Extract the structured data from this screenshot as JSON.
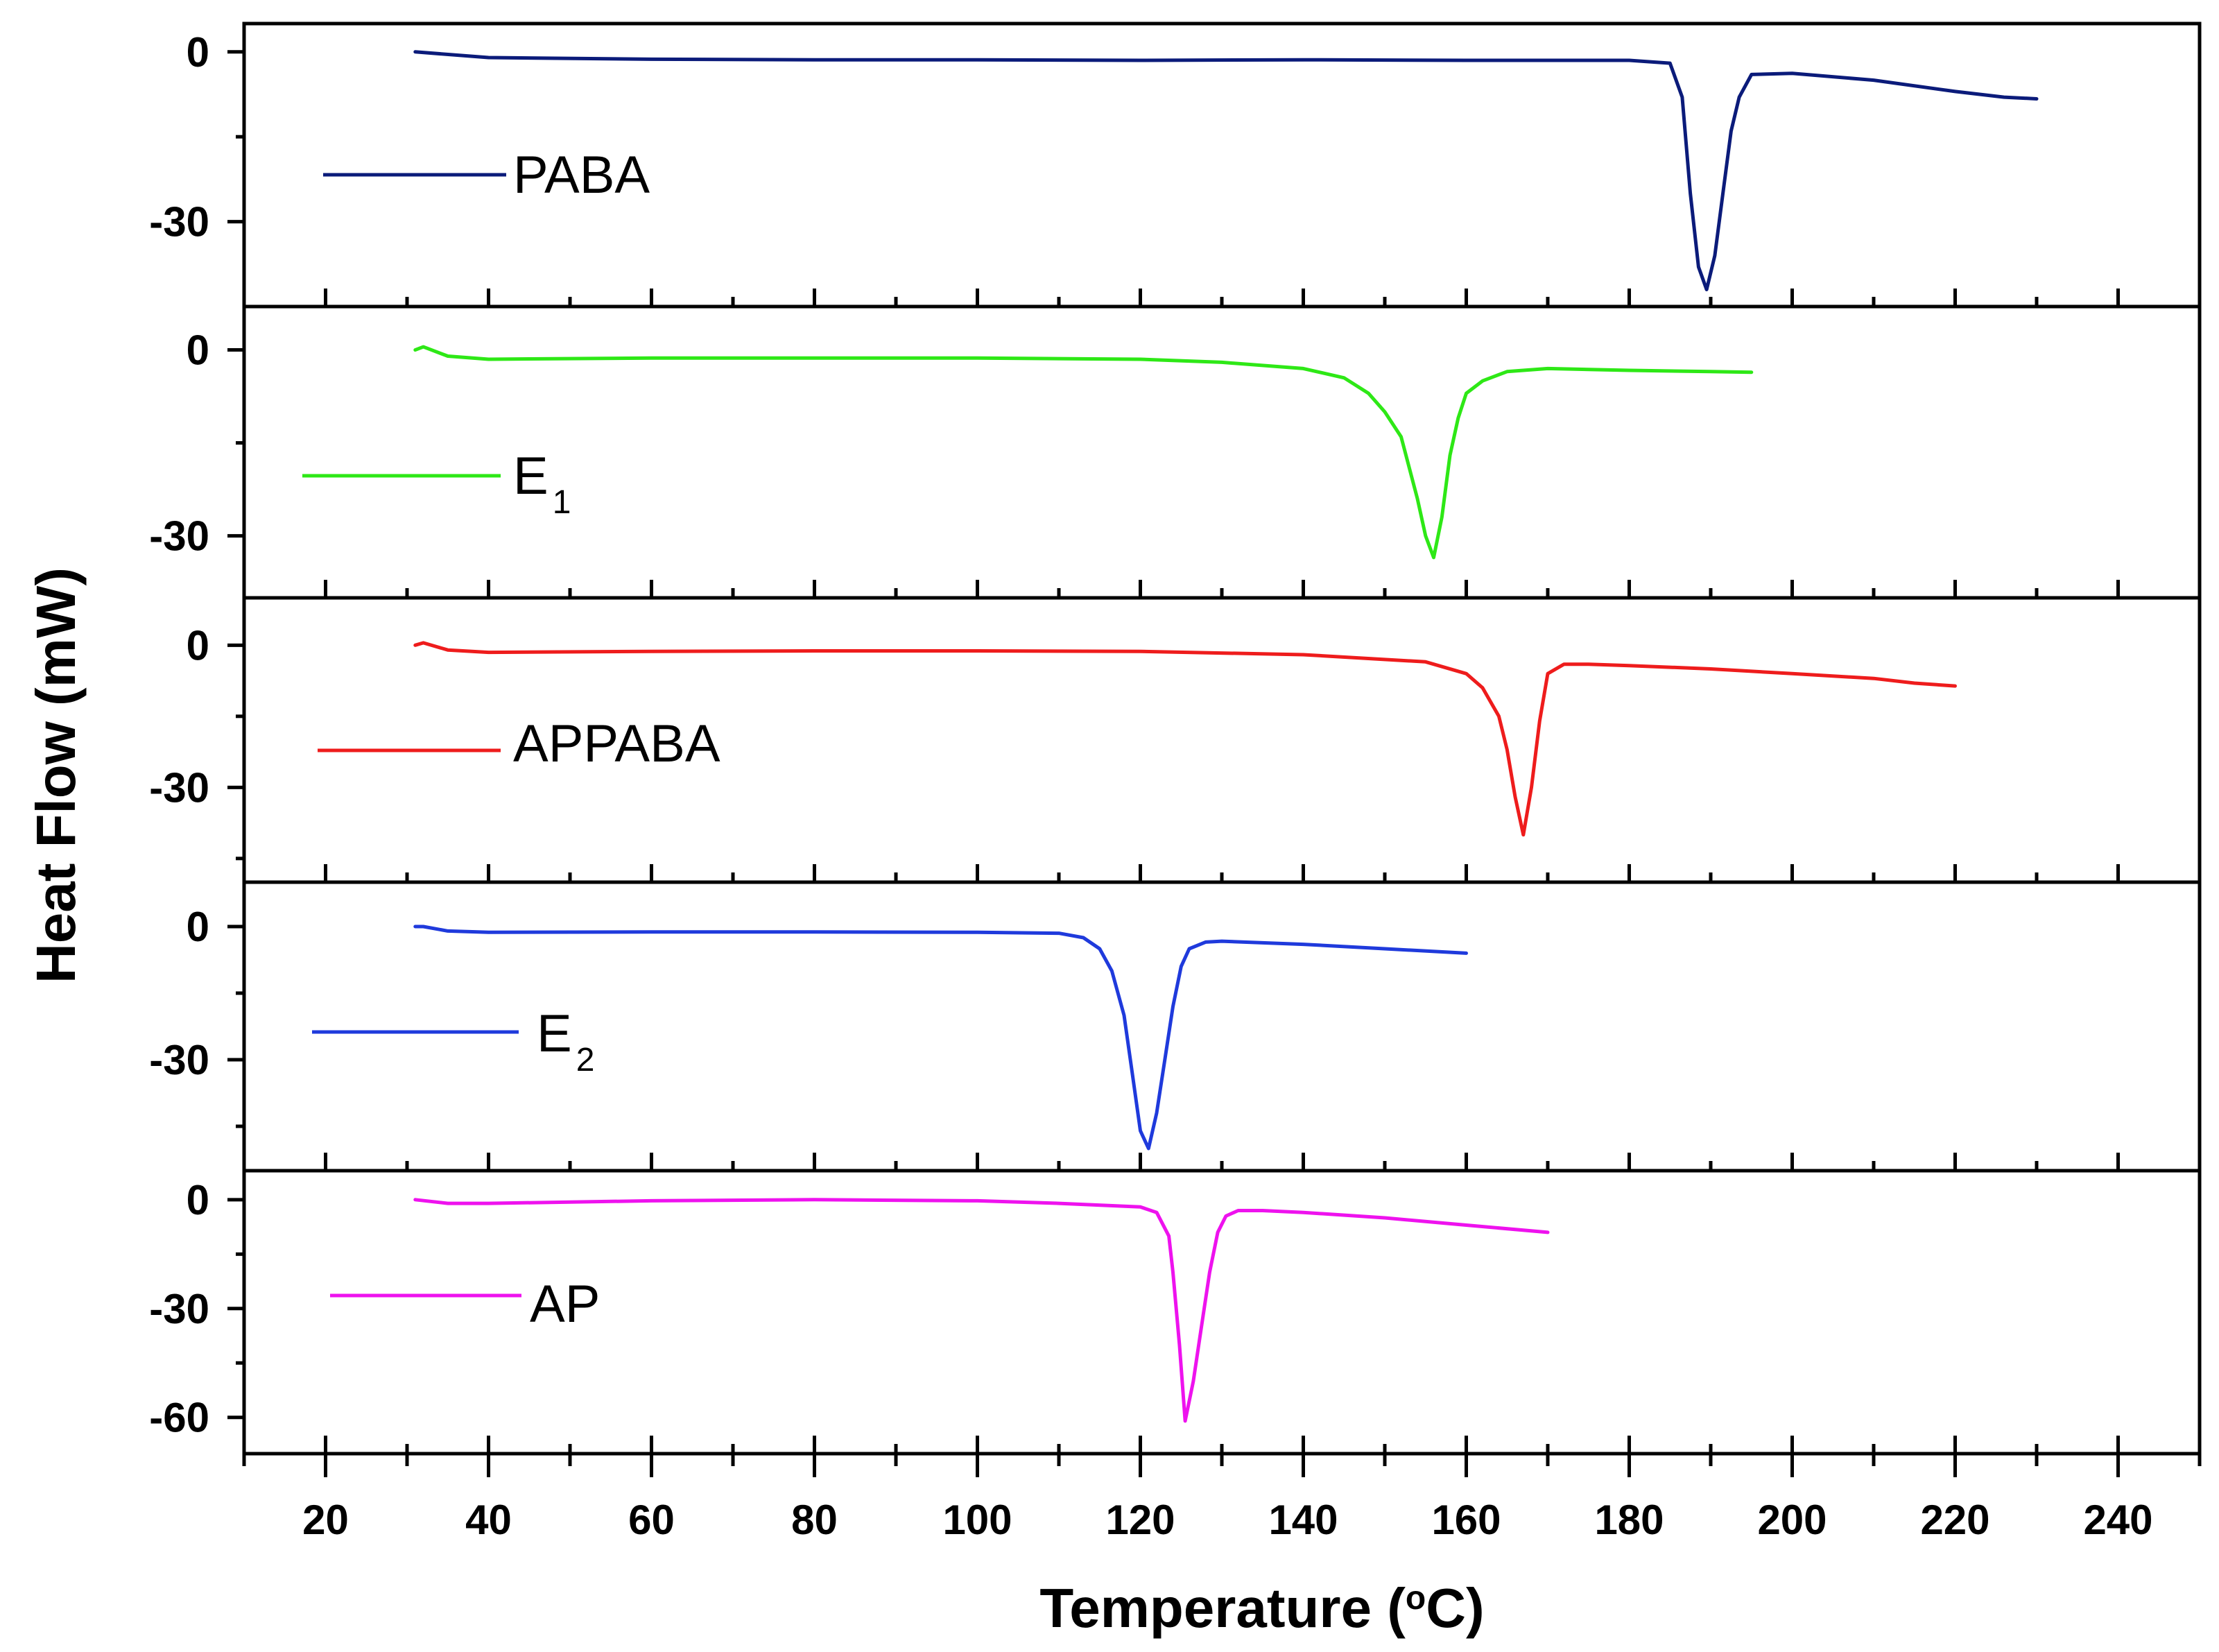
{
  "chart_data": {
    "type": "line",
    "xlabel": "Temperature (°C)",
    "xlabel_parts": {
      "before": "Temperature (",
      "superscript": "o",
      "after": "C)"
    },
    "ylabel": "Heat Flow (mW)",
    "xlim": [
      10,
      250
    ],
    "x_ticks": [
      20,
      40,
      60,
      80,
      100,
      120,
      140,
      160,
      180,
      200,
      220,
      240
    ],
    "grid": false,
    "panels": [
      {
        "name": "PABA",
        "label_main": "PABA",
        "label_sub": "",
        "color": "#0b1b7a",
        "ylim": [
          -45,
          5
        ],
        "y_ticks": [
          0,
          -30
        ],
        "x": [
          31,
          40,
          60,
          80,
          100,
          120,
          140,
          160,
          180,
          185,
          186.5,
          187.5,
          188.5,
          189.5,
          190.5,
          191.5,
          192.5,
          193.5,
          195,
          200,
          210,
          220,
          226,
          230
        ],
        "y": [
          0,
          -1,
          -1.3,
          -1.4,
          -1.4,
          -1.5,
          -1.4,
          -1.5,
          -1.5,
          -2,
          -8,
          -25,
          -38,
          -42,
          -36,
          -25,
          -14,
          -8,
          -4,
          -3.8,
          -5,
          -7,
          -8,
          -8.3
        ]
      },
      {
        "name": "E1",
        "label_main": "E",
        "label_sub": "1",
        "color": "#2ee816",
        "ylim": [
          -40,
          7
        ],
        "y_ticks": [
          0,
          -30
        ],
        "x": [
          31,
          32,
          35,
          40,
          60,
          80,
          100,
          120,
          130,
          140,
          145,
          148,
          150,
          152,
          154,
          155,
          156,
          157,
          158,
          159,
          160,
          162,
          165,
          170,
          180,
          190,
          195
        ],
        "y": [
          0,
          0.5,
          -1,
          -1.5,
          -1.3,
          -1.3,
          -1.3,
          -1.5,
          -2,
          -3,
          -4.5,
          -7,
          -10,
          -14,
          -24,
          -30,
          -33.5,
          -27,
          -17,
          -11,
          -7,
          -5,
          -3.5,
          -3,
          -3.3,
          -3.5,
          -3.6
        ]
      },
      {
        "name": "APPABA",
        "label_main": "APPABA",
        "label_sub": "",
        "color": "#ee1c1c",
        "ylim": [
          -50,
          10
        ],
        "y_ticks": [
          0,
          -30
        ],
        "x": [
          31,
          32,
          35,
          40,
          60,
          80,
          100,
          120,
          140,
          155,
          160,
          162,
          164,
          165,
          166,
          167,
          168,
          169,
          170,
          172,
          175,
          180,
          190,
          200,
          210,
          215,
          220
        ],
        "y": [
          0,
          0.5,
          -1,
          -1.5,
          -1.3,
          -1.2,
          -1.2,
          -1.3,
          -2,
          -3.5,
          -6,
          -9,
          -15,
          -22,
          -32,
          -40,
          -30,
          -16,
          -6,
          -4,
          -4,
          -4.3,
          -5,
          -6,
          -7,
          -8,
          -8.6
        ]
      },
      {
        "name": "E2",
        "label_main": "E",
        "label_sub": "2",
        "color": "#1f3adc",
        "ylim": [
          -55,
          10
        ],
        "y_ticks": [
          0,
          -30
        ],
        "x": [
          31,
          32,
          35,
          40,
          60,
          80,
          100,
          110,
          113,
          115,
          116.5,
          118,
          119,
          120,
          121,
          122,
          123,
          124,
          125,
          126,
          128,
          130,
          140,
          150,
          160
        ],
        "y": [
          0,
          0,
          -1,
          -1.3,
          -1.2,
          -1.2,
          -1.3,
          -1.5,
          -2.5,
          -5,
          -10,
          -20,
          -33,
          -46,
          -50,
          -42,
          -30,
          -18,
          -9,
          -5,
          -3.5,
          -3.3,
          -4,
          -5,
          -6
        ]
      },
      {
        "name": "AP",
        "label_main": "AP",
        "label_sub": "",
        "color": "#ee12ee",
        "ylim": [
          -70,
          8
        ],
        "y_ticks": [
          0,
          -30,
          -60
        ],
        "x": [
          31,
          35,
          40,
          60,
          80,
          100,
          110,
          120,
          122,
          123.5,
          124,
          124.8,
          125.5,
          126.5,
          127.5,
          128.5,
          129.5,
          130.5,
          132,
          135,
          140,
          150,
          160,
          170
        ],
        "y": [
          0,
          -1,
          -1,
          -0.3,
          0,
          -0.3,
          -1,
          -2,
          -3.5,
          -10,
          -20,
          -40,
          -61,
          -50,
          -35,
          -20,
          -9,
          -4.5,
          -3,
          -3,
          -3.5,
          -5,
          -7,
          -9
        ]
      }
    ]
  }
}
